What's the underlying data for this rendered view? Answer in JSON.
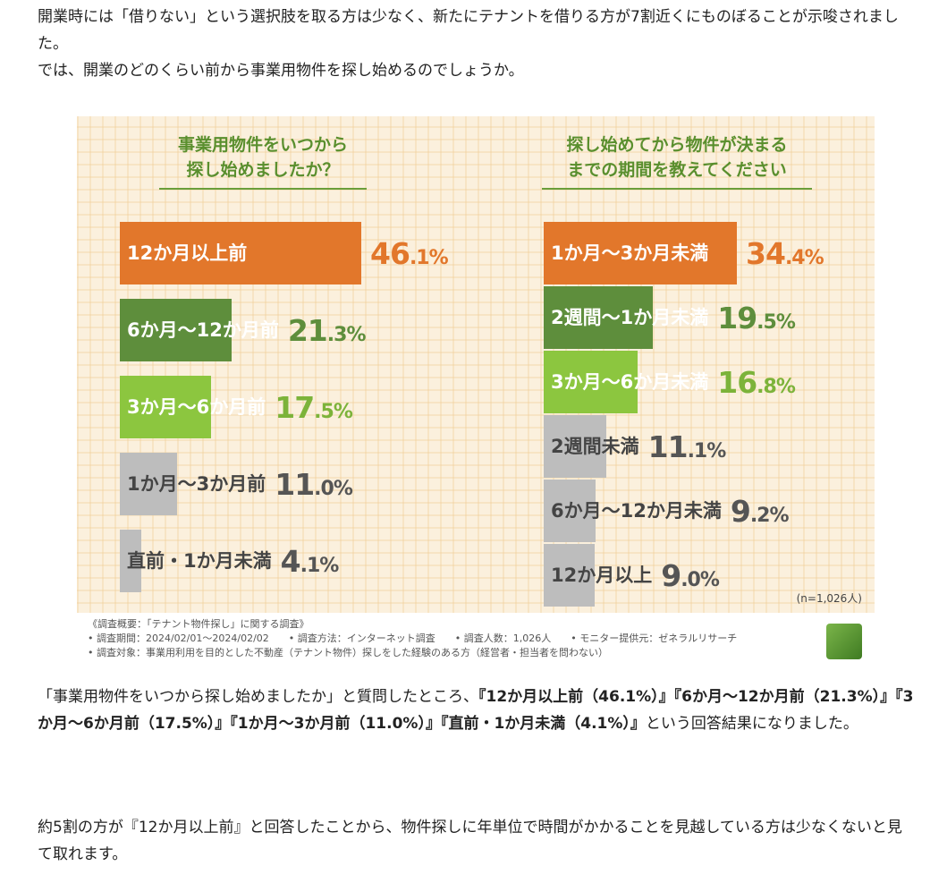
{
  "intro": {
    "line1": "開業時には「借りない」という選択肢を取る方は少なく、新たにテナントを借りる方が7割近くにものぼることが示唆されました。",
    "line2": "では、開業のどのくらい前から事業用物件を探し始めるのでしょうか。"
  },
  "chart_data": [
    {
      "type": "bar",
      "orientation": "horizontal",
      "title_lines": [
        "事業用物件をいつから",
        "探し始めましたか？"
      ],
      "unit": "%",
      "max": 50,
      "bars": [
        {
          "label": "12か月以上前",
          "int": "46",
          "dec": ".1%",
          "value": 46.1,
          "color": "#e2772b",
          "label_color": "#ffffff",
          "pct_color": "#e2772b"
        },
        {
          "label": "6か月〜12か月前",
          "int": "21",
          "dec": ".3%",
          "value": 21.3,
          "color": "#5e8e3c",
          "label_color": "#ffffff",
          "pct_color": "#5e8e3c"
        },
        {
          "label": "3か月〜6か月前",
          "int": "17",
          "dec": ".5%",
          "value": 17.5,
          "color": "#8cc63f",
          "label_color": "#ffffff",
          "pct_color": "#7cb33a"
        },
        {
          "label": "1か月〜3か月前",
          "int": "11",
          "dec": ".0%",
          "value": 11.0,
          "color": "#bdbdbd",
          "label_color": "#444444",
          "pct_color": "#555555"
        },
        {
          "label": "直前・1か月未満",
          "int": "4",
          "dec": ".1%",
          "value": 4.1,
          "color": "#bdbdbd",
          "label_color": "#444444",
          "pct_color": "#555555"
        }
      ]
    },
    {
      "type": "bar",
      "orientation": "horizontal",
      "title_lines": [
        "探し始めてから物件が決まる",
        "までの期間を教えてください"
      ],
      "unit": "%",
      "max": 50,
      "bars": [
        {
          "label": "1か月〜3か月未満",
          "int": "34",
          "dec": ".4%",
          "value": 34.4,
          "color": "#e2772b",
          "label_color": "#ffffff",
          "pct_color": "#e2772b"
        },
        {
          "label": "2週間〜1か月未満",
          "int": "19",
          "dec": ".5%",
          "value": 19.5,
          "color": "#5e8e3c",
          "label_color": "#ffffff",
          "pct_color": "#5e8e3c"
        },
        {
          "label": "3か月〜6か月未満",
          "int": "16",
          "dec": ".8%",
          "value": 16.8,
          "color": "#8cc63f",
          "label_color": "#ffffff",
          "pct_color": "#7cb33a"
        },
        {
          "label": "2週間未満",
          "int": "11",
          "dec": ".1%",
          "value": 11.1,
          "color": "#bdbdbd",
          "label_color": "#444444",
          "pct_color": "#555555"
        },
        {
          "label": "6か月〜12か月未満",
          "int": "9",
          "dec": ".2%",
          "value": 9.2,
          "color": "#bdbdbd",
          "label_color": "#444444",
          "pct_color": "#555555"
        },
        {
          "label": "12か月以上",
          "int": "9",
          "dec": ".0%",
          "value": 9.0,
          "color": "#bdbdbd",
          "label_color": "#444444",
          "pct_color": "#555555"
        }
      ]
    }
  ],
  "sample_note": "(n=1,026人)",
  "footer": {
    "line1": "《調査概要：「テナント物件探し」に関する調査》",
    "line2": "• 調査期間：2024/02/01〜2024/02/02　　• 調査方法：インターネット調査　　• 調査人数：1,026人　　• モニター提供元：ゼネラルリサーチ",
    "line3": "• 調査対象：事業用利用を目的とした不動産（テナント物件）探しをした経験のある方（経営者・担当者を問わない）"
  },
  "result": {
    "lead": "「事業用物件をいつから探し始めましたか」と質問したところ、",
    "bold": "『12か月以上前（46.1%）』『6か月〜12か月前（21.3%）』『3か月〜6か月前（17.5%）』『1か月〜3か月前（11.0%）』『直前・1か月未満（4.1%）』",
    "tail": "という回答結果になりました。"
  },
  "conclusion": "約5割の方が『12か月以上前』と回答したことから、物件探しに年単位で時間がかかることを見越している方は少なくないと見て取れます。"
}
